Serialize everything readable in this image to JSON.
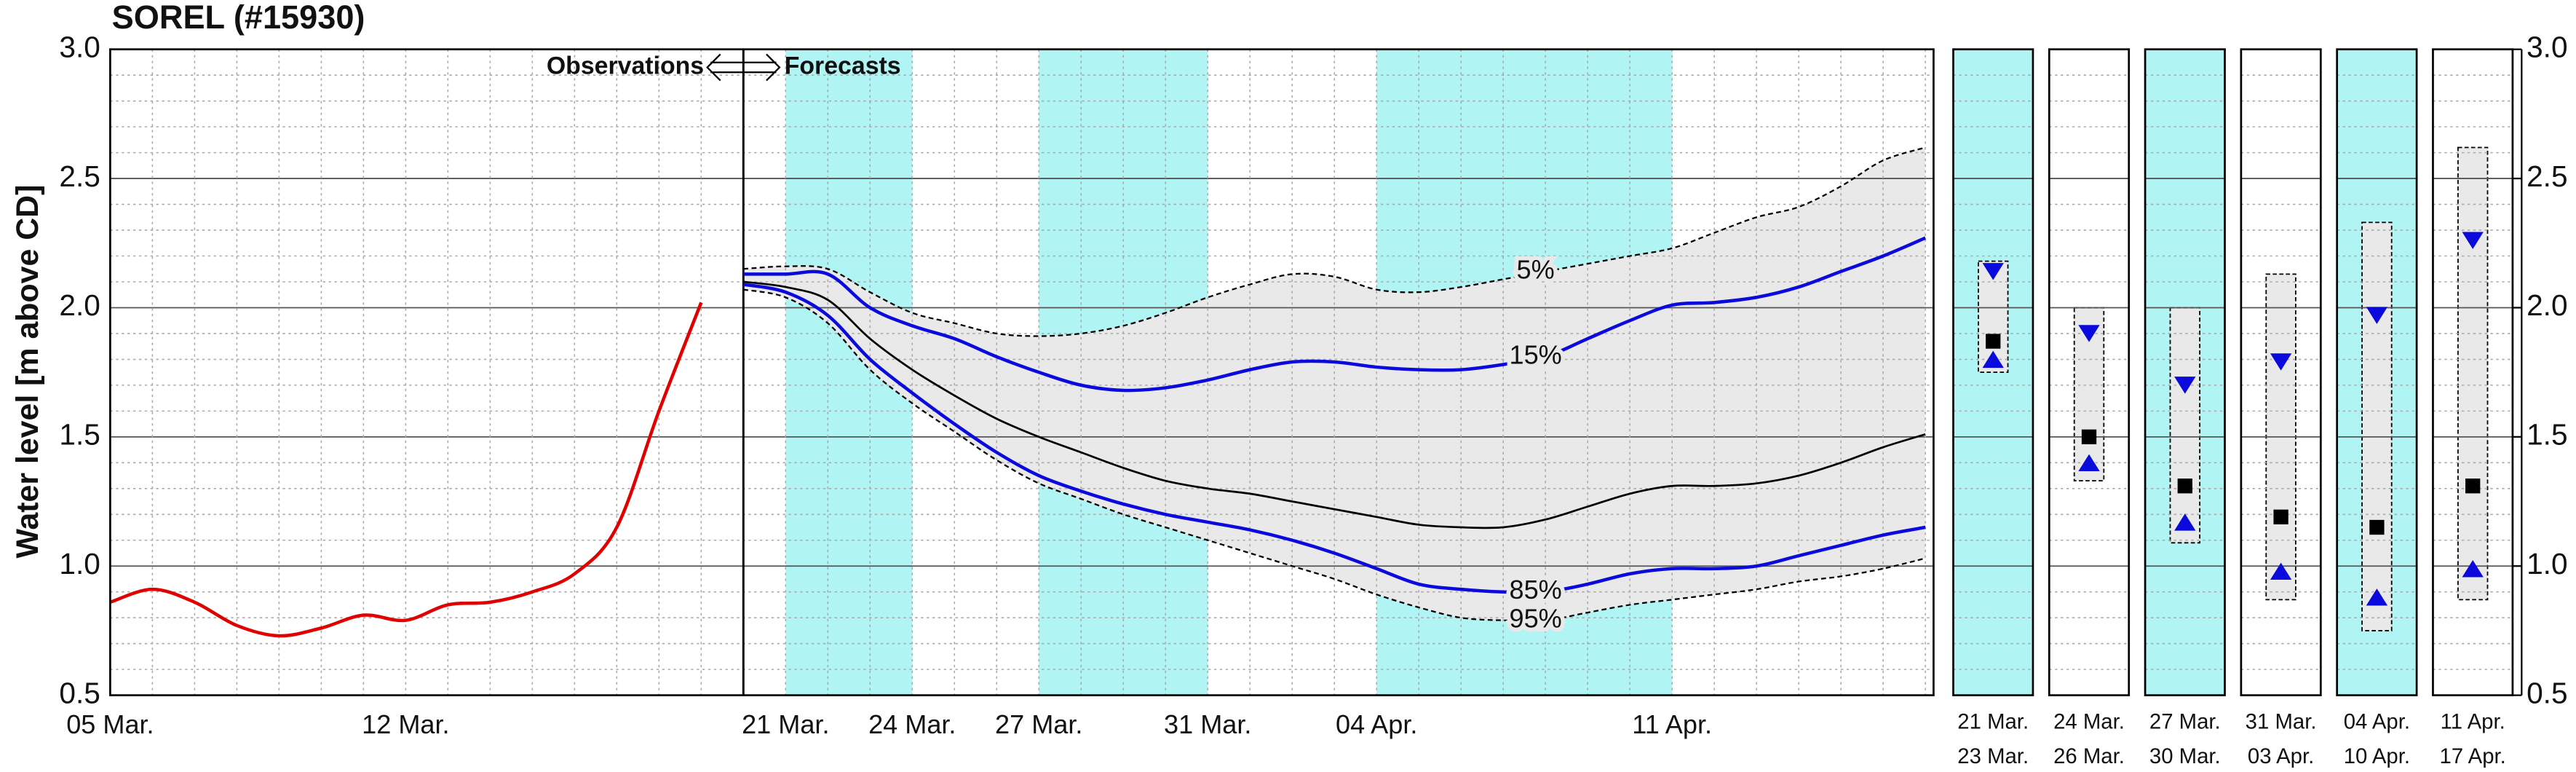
{
  "chart_data": {
    "type": "line",
    "title": "SOREL (#15930)",
    "y_label": "Water level [m above CD]",
    "annotations": [
      "Observations",
      "Forecasts"
    ],
    "categories": [
      "05 Mar.",
      null,
      null,
      null,
      null,
      null,
      null,
      "12 Mar.",
      null,
      null,
      null,
      null,
      null,
      null,
      null,
      null,
      "21 Mar.",
      null,
      null,
      "24 Mar.",
      null,
      null,
      "27 Mar.",
      null,
      null,
      null,
      "31 Mar.",
      null,
      null,
      null,
      "04 Apr.",
      null,
      null,
      null,
      null,
      null,
      null,
      "11 Apr.",
      null,
      null,
      null,
      null,
      null,
      null
    ],
    "series": [
      {
        "color": "#e00000",
        "values": [
          0.86,
          0.91,
          0.86,
          0.77,
          0.73,
          0.76,
          0.81,
          0.79,
          0.85,
          0.86,
          0.9,
          0.97,
          1.15,
          1.6,
          2.02,
          null,
          null,
          null,
          null,
          null,
          null,
          null,
          null,
          null,
          null,
          null,
          null,
          null,
          null,
          null,
          null,
          null,
          null,
          null,
          null,
          null,
          null,
          null,
          null,
          null,
          null,
          null,
          null,
          null
        ]
      },
      {
        "name": "5%",
        "color": "#000000",
        "dashed": true,
        "values": [
          null,
          null,
          null,
          null,
          null,
          null,
          null,
          null,
          null,
          null,
          null,
          null,
          null,
          null,
          null,
          2.15,
          2.16,
          2.15,
          2.06,
          1.98,
          1.94,
          1.9,
          1.89,
          1.9,
          1.93,
          1.98,
          2.04,
          2.09,
          2.13,
          2.12,
          2.07,
          2.06,
          2.08,
          2.11,
          2.14,
          2.17,
          2.2,
          2.23,
          2.29,
          2.35,
          2.39,
          2.47,
          2.57,
          2.62
        ]
      },
      {
        "name": "15%",
        "color": "#0a0adc",
        "values": [
          null,
          null,
          null,
          null,
          null,
          null,
          null,
          null,
          null,
          null,
          null,
          null,
          null,
          null,
          null,
          2.13,
          2.13,
          2.13,
          2.0,
          1.93,
          1.88,
          1.81,
          1.75,
          1.7,
          1.68,
          1.69,
          1.72,
          1.76,
          1.79,
          1.79,
          1.77,
          1.76,
          1.76,
          1.78,
          1.81,
          1.88,
          1.95,
          2.01,
          2.02,
          2.04,
          2.08,
          2.14,
          2.2,
          2.27
        ]
      },
      {
        "color": "#000000",
        "values": [
          null,
          null,
          null,
          null,
          null,
          null,
          null,
          null,
          null,
          null,
          null,
          null,
          null,
          null,
          null,
          2.1,
          2.08,
          2.03,
          1.88,
          1.76,
          1.66,
          1.57,
          1.5,
          1.44,
          1.38,
          1.33,
          1.3,
          1.28,
          1.25,
          1.22,
          1.19,
          1.16,
          1.15,
          1.15,
          1.18,
          1.23,
          1.28,
          1.31,
          1.31,
          1.32,
          1.35,
          1.4,
          1.46,
          1.51
        ]
      },
      {
        "name": "85%",
        "color": "#0a0adc",
        "values": [
          null,
          null,
          null,
          null,
          null,
          null,
          null,
          null,
          null,
          null,
          null,
          null,
          null,
          null,
          null,
          2.09,
          2.06,
          1.97,
          1.8,
          1.67,
          1.55,
          1.44,
          1.35,
          1.29,
          1.24,
          1.2,
          1.17,
          1.14,
          1.1,
          1.05,
          0.99,
          0.93,
          0.91,
          0.9,
          0.9,
          0.93,
          0.97,
          0.99,
          0.99,
          1.0,
          1.04,
          1.08,
          1.12,
          1.15
        ]
      },
      {
        "name": "95%",
        "color": "#000000",
        "dashed": true,
        "values": [
          null,
          null,
          null,
          null,
          null,
          null,
          null,
          null,
          null,
          null,
          null,
          null,
          null,
          null,
          null,
          2.07,
          2.04,
          1.94,
          1.76,
          1.63,
          1.52,
          1.41,
          1.32,
          1.26,
          1.2,
          1.15,
          1.1,
          1.05,
          1.0,
          0.95,
          0.89,
          0.84,
          0.8,
          0.79,
          0.79,
          0.82,
          0.85,
          0.87,
          0.89,
          0.91,
          0.94,
          0.96,
          0.99,
          1.03
        ]
      }
    ],
    "band_color": "#e9e9e9",
    "shade_color": "#b0f4f4",
    "ylim": [
      0.5,
      3.0
    ],
    "yticks": [
      0.5,
      {
        "value": 1,
        "label": "1.0"
      },
      1.5,
      {
        "value": 2,
        "label": "2.0"
      },
      2.5,
      {
        "value": 3,
        "label": "3.0"
      }
    ],
    "grid": true,
    "minor_grid": true,
    "panels": [
      {
        "labels": [
          "21 Mar.",
          "23 Mar."
        ],
        "shaded": true,
        "max": 2.18,
        "p15": 2.14,
        "median": 1.87,
        "p85": 1.8,
        "min": 1.75
      },
      {
        "labels": [
          "24 Mar.",
          "26 Mar."
        ],
        "shaded": false,
        "max": 2.0,
        "p15": 1.9,
        "median": 1.5,
        "p85": 1.4,
        "min": 1.33
      },
      {
        "labels": [
          "27 Mar.",
          "30 Mar."
        ],
        "shaded": true,
        "max": 2.0,
        "p15": 1.7,
        "median": 1.31,
        "p85": 1.17,
        "min": 1.09
      },
      {
        "labels": [
          "31 Mar.",
          "03 Apr."
        ],
        "shaded": false,
        "max": 2.13,
        "p15": 1.79,
        "median": 1.19,
        "p85": 0.98,
        "min": 0.87
      },
      {
        "labels": [
          "04 Apr.",
          "10 Apr."
        ],
        "shaded": true,
        "max": 2.33,
        "p15": 1.97,
        "median": 1.15,
        "p85": 0.88,
        "min": 0.75
      },
      {
        "labels": [
          "11 Apr.",
          "17 Apr."
        ],
        "shaded": false,
        "max": 2.62,
        "p15": 2.26,
        "median": 1.31,
        "p85": 0.99,
        "min": 0.87
      }
    ]
  }
}
